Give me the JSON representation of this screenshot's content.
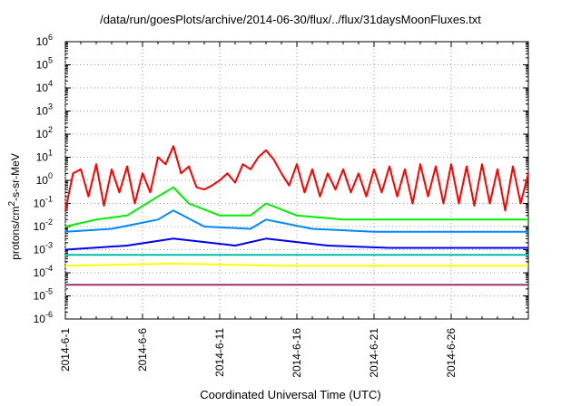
{
  "chart_data": {
    "type": "line",
    "title": "/data/run/goesPlots/archive/2014-06-30/flux/../flux/31daysMoonFluxes.txt",
    "xlabel": "Coordinated Universal Time (UTC)",
    "ylabel": {
      "prefix": "protons/cm",
      "sup": "2",
      "suffix": "-s-sr-MeV"
    },
    "yscale": "log",
    "ylim_exp": [
      -6,
      6
    ],
    "y_tick_labels": [
      {
        "base": "10",
        "exp": "6"
      },
      {
        "base": "10",
        "exp": "5"
      },
      {
        "base": "10",
        "exp": "4"
      },
      {
        "base": "10",
        "exp": "3"
      },
      {
        "base": "10",
        "exp": "2"
      },
      {
        "base": "10",
        "exp": "1"
      },
      {
        "base": "10",
        "exp": "0"
      },
      {
        "base": "10",
        "exp": "-1"
      },
      {
        "base": "10",
        "exp": "-2"
      },
      {
        "base": "10",
        "exp": "-3"
      },
      {
        "base": "10",
        "exp": "-4"
      },
      {
        "base": "10",
        "exp": "-5"
      },
      {
        "base": "10",
        "exp": "-6"
      }
    ],
    "x_range_days": [
      "2014-06-01",
      "2014-07-01"
    ],
    "x_ticks": [
      "2014-6-1",
      "2014-6-6",
      "2014-6-11",
      "2014-6-16",
      "2014-6-21",
      "2014-6-26"
    ],
    "grid": true,
    "series": [
      {
        "color": "#ff0000",
        "points": [
          [
            "2014-06-01",
            0.05
          ],
          [
            "2014-06-01.5",
            2
          ],
          [
            "2014-06-02",
            3
          ],
          [
            "2014-06-02.5",
            0.2
          ],
          [
            "2014-06-03",
            5
          ],
          [
            "2014-06-03.5",
            0.08
          ],
          [
            "2014-06-04",
            3
          ],
          [
            "2014-06-04.5",
            0.3
          ],
          [
            "2014-06-05",
            4
          ],
          [
            "2014-06-05.5",
            0.1
          ],
          [
            "2014-06-06",
            2
          ],
          [
            "2014-06-06.5",
            0.3
          ],
          [
            "2014-06-07",
            10
          ],
          [
            "2014-06-07.5",
            5
          ],
          [
            "2014-06-08",
            30
          ],
          [
            "2014-06-08.5",
            2
          ],
          [
            "2014-06-09",
            4
          ],
          [
            "2014-06-09.5",
            0.5
          ],
          [
            "2014-06-10",
            0.4
          ],
          [
            "2014-06-10.5",
            0.6
          ],
          [
            "2014-06-11",
            1
          ],
          [
            "2014-06-11.5",
            2
          ],
          [
            "2014-06-12",
            0.8
          ],
          [
            "2014-06-12.5",
            5
          ],
          [
            "2014-06-13",
            3
          ],
          [
            "2014-06-13.5",
            10
          ],
          [
            "2014-06-14",
            20
          ],
          [
            "2014-06-14.5",
            8
          ],
          [
            "2014-06-15",
            2
          ],
          [
            "2014-06-15.5",
            0.6
          ],
          [
            "2014-06-16",
            5
          ],
          [
            "2014-06-16.5",
            0.3
          ],
          [
            "2014-06-17",
            3
          ],
          [
            "2014-06-17.5",
            0.2
          ],
          [
            "2014-06-18",
            2
          ],
          [
            "2014-06-18.5",
            0.4
          ],
          [
            "2014-06-19",
            3
          ],
          [
            "2014-06-19.5",
            0.3
          ],
          [
            "2014-06-20",
            2
          ],
          [
            "2014-06-20.5",
            0.2
          ],
          [
            "2014-06-21",
            3
          ],
          [
            "2014-06-21.5",
            0.3
          ],
          [
            "2014-06-22",
            4
          ],
          [
            "2014-06-22.5",
            0.2
          ],
          [
            "2014-06-23",
            3
          ],
          [
            "2014-06-23.5",
            0.1
          ],
          [
            "2014-06-24",
            5
          ],
          [
            "2014-06-24.5",
            0.2
          ],
          [
            "2014-06-25",
            4
          ],
          [
            "2014-06-25.5",
            0.1
          ],
          [
            "2014-06-26",
            5
          ],
          [
            "2014-06-26.5",
            0.1
          ],
          [
            "2014-06-27",
            4
          ],
          [
            "2014-06-27.5",
            0.08
          ],
          [
            "2014-06-28",
            5
          ],
          [
            "2014-06-28.5",
            0.1
          ],
          [
            "2014-06-29",
            3
          ],
          [
            "2014-06-29.5",
            0.05
          ],
          [
            "2014-06-30",
            4
          ],
          [
            "2014-06-30.5",
            0.1
          ],
          [
            "2014-07-01",
            2
          ]
        ]
      },
      {
        "color": "#00ee00",
        "points": [
          [
            "2014-06-01",
            0.01
          ],
          [
            "2014-06-03",
            0.02
          ],
          [
            "2014-06-05",
            0.03
          ],
          [
            "2014-06-07",
            0.2
          ],
          [
            "2014-06-08",
            0.5
          ],
          [
            "2014-06-09",
            0.1
          ],
          [
            "2014-06-11",
            0.03
          ],
          [
            "2014-06-13",
            0.03
          ],
          [
            "2014-06-14",
            0.1
          ],
          [
            "2014-06-16",
            0.03
          ],
          [
            "2014-06-19",
            0.02
          ],
          [
            "2014-06-22",
            0.02
          ],
          [
            "2014-06-25",
            0.02
          ],
          [
            "2014-06-28",
            0.02
          ],
          [
            "2014-07-01",
            0.02
          ]
        ]
      },
      {
        "color": "#0088ff",
        "points": [
          [
            "2014-06-01",
            0.006
          ],
          [
            "2014-06-04",
            0.008
          ],
          [
            "2014-06-07",
            0.02
          ],
          [
            "2014-06-08",
            0.05
          ],
          [
            "2014-06-10",
            0.01
          ],
          [
            "2014-06-13",
            0.008
          ],
          [
            "2014-06-14",
            0.02
          ],
          [
            "2014-06-17",
            0.008
          ],
          [
            "2014-06-21",
            0.006
          ],
          [
            "2014-06-25",
            0.006
          ],
          [
            "2014-07-01",
            0.006
          ]
        ]
      },
      {
        "color": "#0000ee",
        "points": [
          [
            "2014-06-01",
            0.001
          ],
          [
            "2014-06-05",
            0.0015
          ],
          [
            "2014-06-08",
            0.003
          ],
          [
            "2014-06-12",
            0.0015
          ],
          [
            "2014-06-14",
            0.003
          ],
          [
            "2014-06-18",
            0.0015
          ],
          [
            "2014-06-22",
            0.0012
          ],
          [
            "2014-06-26",
            0.0012
          ],
          [
            "2014-07-01",
            0.0012
          ]
        ]
      },
      {
        "color": "#00bbaa",
        "points": [
          [
            "2014-06-01",
            0.0006
          ],
          [
            "2014-06-08",
            0.0006
          ],
          [
            "2014-06-15",
            0.0006
          ],
          [
            "2014-06-22",
            0.0006
          ],
          [
            "2014-07-01",
            0.0006
          ]
        ]
      },
      {
        "color": "#ffff00",
        "points": [
          [
            "2014-06-01",
            0.0002
          ],
          [
            "2014-06-08",
            0.00025
          ],
          [
            "2014-06-15",
            0.0002
          ],
          [
            "2014-06-22",
            0.0002
          ],
          [
            "2014-07-01",
            0.0002
          ]
        ]
      },
      {
        "color": "#993366",
        "points": [
          [
            "2014-06-01",
            3e-05
          ],
          [
            "2014-06-08",
            3e-05
          ],
          [
            "2014-06-15",
            3e-05
          ],
          [
            "2014-06-22",
            3e-05
          ],
          [
            "2014-07-01",
            3e-05
          ]
        ]
      }
    ]
  }
}
